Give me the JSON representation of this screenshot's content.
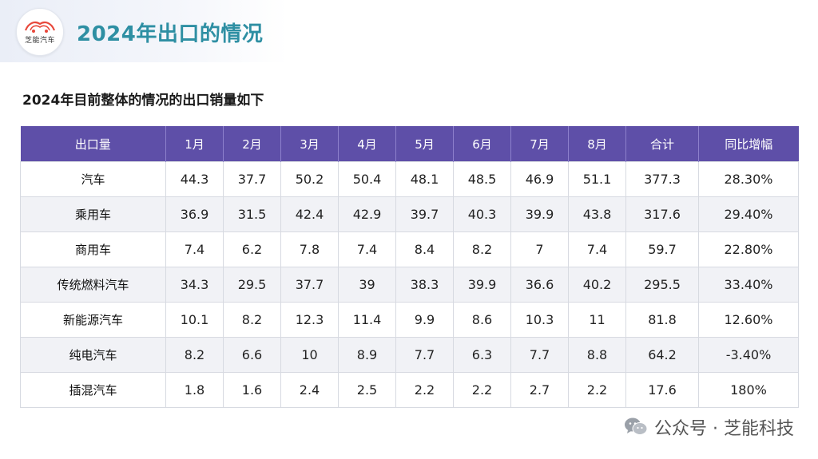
{
  "header": {
    "title": "2024年出口的情况",
    "logo_text": "芝能汽车"
  },
  "subtitle": "2024年目前整体的情况的出口销量如下",
  "table": {
    "columns": [
      "出口量",
      "1月",
      "2月",
      "3月",
      "4月",
      "5月",
      "6月",
      "7月",
      "8月",
      "合计",
      "同比增幅"
    ],
    "rows": [
      [
        "汽车",
        "44.3",
        "37.7",
        "50.2",
        "50.4",
        "48.1",
        "48.5",
        "46.9",
        "51.1",
        "377.3",
        "28.30%"
      ],
      [
        "乘用车",
        "36.9",
        "31.5",
        "42.4",
        "42.9",
        "39.7",
        "40.3",
        "39.9",
        "43.8",
        "317.6",
        "29.40%"
      ],
      [
        "商用车",
        "7.4",
        "6.2",
        "7.8",
        "7.4",
        "8.4",
        "8.2",
        "7",
        "7.4",
        "59.7",
        "22.80%"
      ],
      [
        "传统燃料汽车",
        "34.3",
        "29.5",
        "37.7",
        "39",
        "38.3",
        "39.9",
        "36.6",
        "40.2",
        "295.5",
        "33.40%"
      ],
      [
        "新能源汽车",
        "10.1",
        "8.2",
        "12.3",
        "11.4",
        "9.9",
        "8.6",
        "10.3",
        "11",
        "81.8",
        "12.60%"
      ],
      [
        "纯电汽车",
        "8.2",
        "6.6",
        "10",
        "8.9",
        "7.7",
        "6.3",
        "7.7",
        "8.8",
        "64.2",
        "-3.40%"
      ],
      [
        "插混汽车",
        "1.8",
        "1.6",
        "2.4",
        "2.5",
        "2.2",
        "2.2",
        "2.7",
        "2.2",
        "17.6",
        "180%"
      ]
    ]
  },
  "watermark": {
    "text": "芝能汽车"
  },
  "footer": {
    "text": "公众号 · 芝能科技",
    "icon": "wechat-icon"
  },
  "colors": {
    "accent": "#2e8fa3",
    "header_bg": "#5e4fa8",
    "logo_red": "#e8483b"
  }
}
